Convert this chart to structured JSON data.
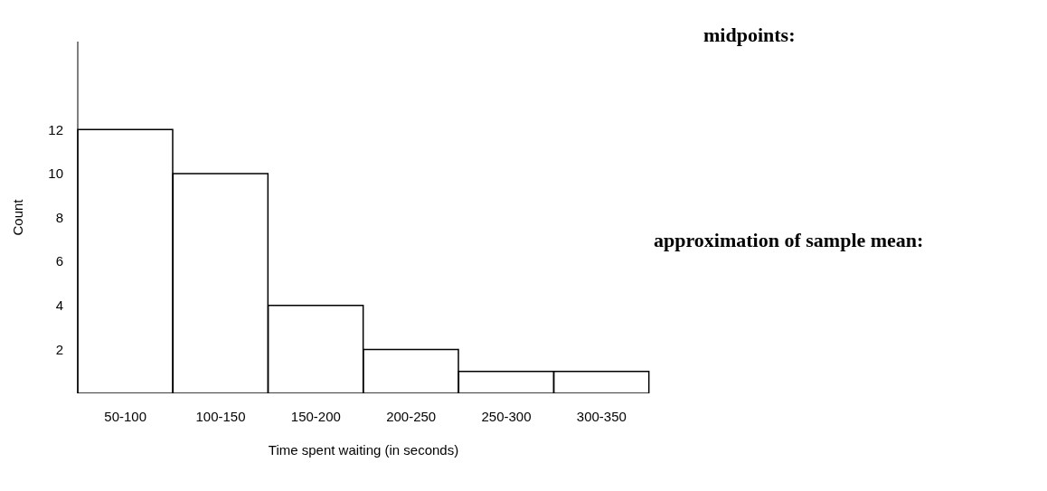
{
  "chart_data": {
    "type": "bar",
    "categories": [
      "50-100",
      "100-150",
      "150-200",
      "200-250",
      "250-300",
      "300-350"
    ],
    "values": [
      12,
      10,
      4,
      2,
      1,
      1
    ],
    "color": "#ffffff",
    "ylim": [
      0,
      16
    ],
    "yticks": [
      2,
      4,
      6,
      8,
      10,
      12
    ],
    "xlabel": "Time spent waiting (in seconds)",
    "ylabel": "Count",
    "grid": false,
    "annotations": [
      "midpoints:",
      "approximation of sample mean:"
    ]
  }
}
